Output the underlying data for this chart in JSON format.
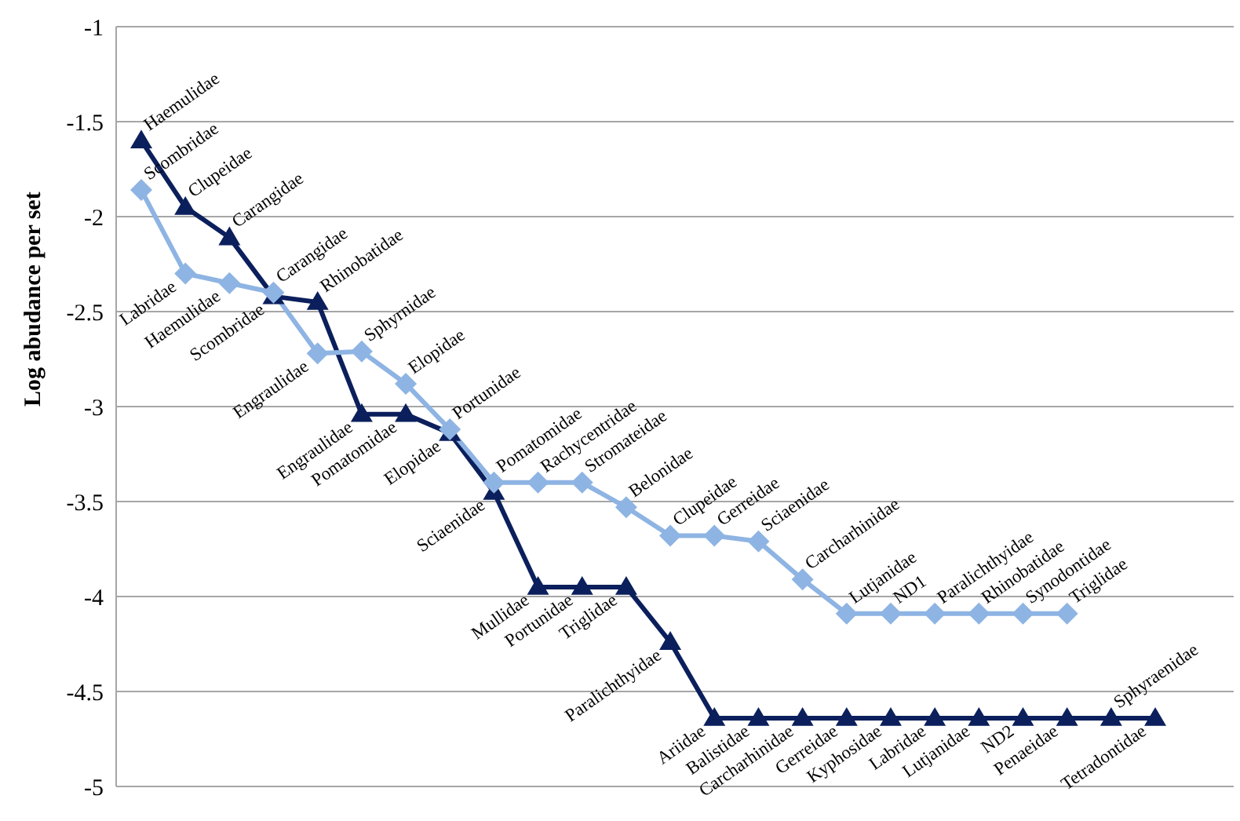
{
  "chart_data": {
    "type": "line",
    "ylabel": "Log abudance per set",
    "categories": [
      null,
      null,
      null,
      null,
      null,
      null,
      null,
      null,
      null,
      null,
      null,
      null,
      null,
      null,
      null,
      null,
      null,
      null,
      null,
      null,
      null,
      null,
      null,
      null
    ],
    "series": [
      {
        "color": "#0b1f5c",
        "marker": "triangle",
        "values": [
          -1.6,
          -1.95,
          -2.11,
          -2.42,
          -2.45,
          -3.04,
          -3.04,
          -3.14,
          -3.45,
          -3.95,
          -3.95,
          -3.95,
          -4.24,
          -4.64,
          -4.64,
          -4.64,
          -4.64,
          -4.64,
          -4.64,
          -4.64,
          -4.64,
          -4.64,
          -4.64,
          -4.64
        ],
        "value_labels": [
          "Haemulidae",
          "Clupeidae",
          "Carangidae",
          "Scombridae",
          "Rhinobatidae",
          "Engraulidae",
          "Pomatomidae",
          "Elopidae",
          "Sciaenidae",
          "Mullidae",
          "Portunidae",
          "Triglidae",
          "Paralichthyidae",
          "Ariidae",
          "Balistidae",
          "Carcharhinidae",
          "Gerreidae",
          "Kyphosidae",
          "Labridae",
          "Lutjanidae",
          "ND2",
          "Penaeidae",
          "Sphyraenidae",
          "Tetradontidae"
        ]
      },
      {
        "color": "#8eb4e3",
        "marker": "diamond",
        "values": [
          -1.86,
          -2.3,
          -2.35,
          -2.4,
          -2.72,
          -2.71,
          -2.88,
          -3.12,
          -3.4,
          -3.4,
          -3.4,
          -3.53,
          -3.68,
          -3.68,
          -3.71,
          -3.91,
          -4.09,
          -4.09,
          -4.09,
          -4.09,
          -4.09,
          -4.09,
          null,
          null
        ],
        "value_labels": [
          "Scombridae",
          "Labridae",
          "Haemulidae",
          "Carangidae",
          "Engraulidae",
          "Sphyrnidae",
          "Elopidae",
          "Portunidae",
          "Pomatomidae",
          "Rachycentridae",
          "Stromateidae",
          "Belonidae",
          "Clupeidae",
          "Gerreidae",
          "Sciaenidae",
          "Carcharhinidae",
          "Lutjanidae",
          "ND1",
          "Paralichthyidae",
          "Rhinobatidae",
          "Synodontidae",
          "Triglidae",
          null,
          null
        ]
      }
    ],
    "ylim": [
      -5,
      -1
    ],
    "yticks": [
      -5,
      -4.5,
      -4,
      -3.5,
      -3,
      -2.5,
      -2,
      -1.5,
      -1
    ],
    "grid": "y",
    "tick_labels": "y",
    "legend": false
  }
}
